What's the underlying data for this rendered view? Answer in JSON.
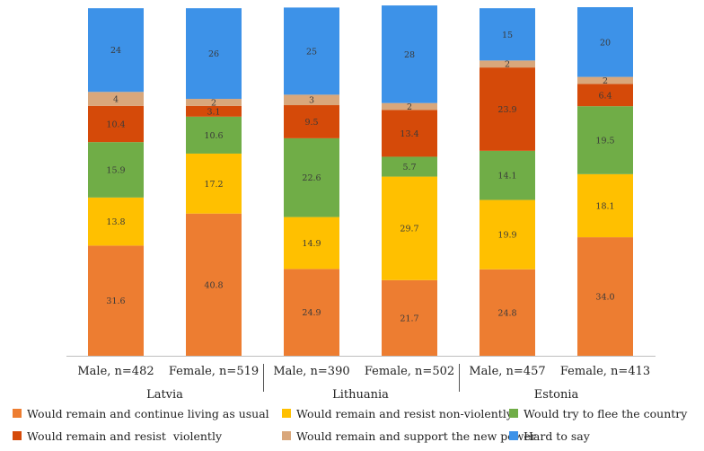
{
  "chart_data": {
    "type": "bar",
    "stacked": true,
    "ylim": [
      0,
      100
    ],
    "grid": false,
    "legend_position": "bottom",
    "categories": [
      "Male, n=482",
      "Female, n=519",
      "Male, n=390",
      "Female, n=502",
      "Male, n=457",
      "Female, n=413"
    ],
    "groups": [
      {
        "label": "Latvia",
        "span": [
          0,
          1
        ]
      },
      {
        "label": "Lithuania",
        "span": [
          2,
          3
        ]
      },
      {
        "label": "Estonia",
        "span": [
          4,
          5
        ]
      }
    ],
    "series": [
      {
        "name": "Would remain and continue living as usual",
        "color": "#ED7D31",
        "values": [
          31.6,
          40.8,
          24.9,
          21.7,
          24.8,
          34.0
        ],
        "labels": [
          "31.6",
          "40.8",
          "24.9",
          "21.7",
          "24.8",
          "34.0"
        ]
      },
      {
        "name": "Would remain and resist non-violently",
        "color": "#FFC000",
        "values": [
          13.8,
          17.2,
          14.9,
          29.7,
          19.9,
          18.1
        ],
        "labels": [
          "13.8",
          "17.2",
          "14.9",
          "29.7",
          "19.9",
          "18.1"
        ]
      },
      {
        "name": "Would try to flee the country",
        "color": "#70AD47",
        "values": [
          15.9,
          10.6,
          22.6,
          5.7,
          14.1,
          19.5
        ],
        "labels": [
          "15.9",
          "10.6",
          "22.6",
          "5.7",
          "14.1",
          "19.5"
        ]
      },
      {
        "name": "Would remain and resist  violently",
        "color": "#D54A09",
        "values": [
          10.4,
          3.1,
          9.5,
          13.4,
          23.9,
          6.4
        ],
        "labels": [
          "10.4",
          "3.1",
          "9.5",
          "13.4",
          "23.9",
          "6.4"
        ]
      },
      {
        "name": "Would remain and support the new power",
        "color": "#D9A77B",
        "values": [
          4,
          2,
          3,
          2,
          2,
          2
        ],
        "labels": [
          "4",
          "2",
          "3",
          "2",
          "2",
          "2"
        ]
      },
      {
        "name": "Hard to say",
        "color": "#3D92E8",
        "values": [
          24,
          26,
          25,
          28,
          15,
          20
        ],
        "labels": [
          "24",
          "26",
          "25",
          "28",
          "15",
          "20"
        ]
      }
    ],
    "legend_order": [
      0,
      1,
      2,
      3,
      4,
      5
    ]
  }
}
